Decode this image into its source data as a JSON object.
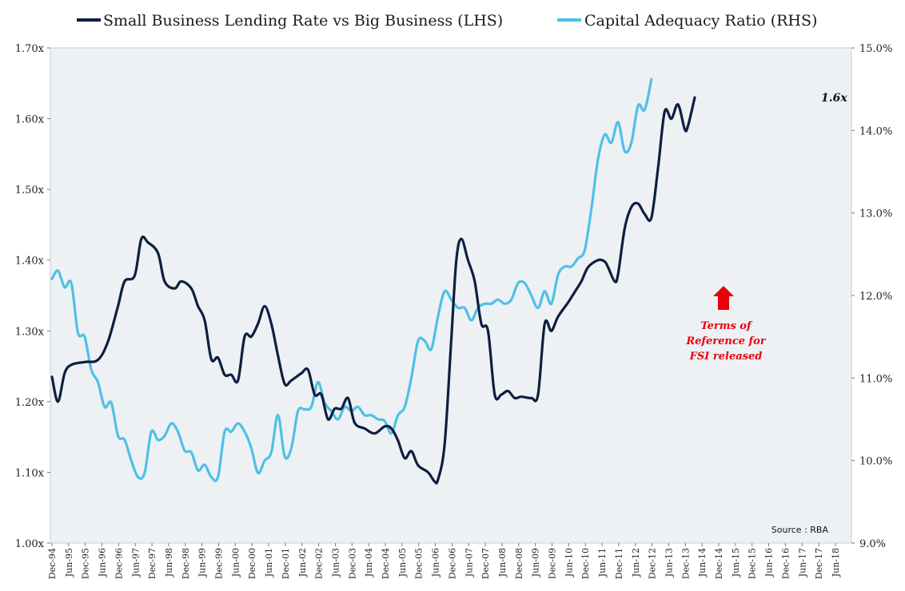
{
  "chart_data": {
    "type": "line",
    "title": "",
    "legend": {
      "placement": "top",
      "entries": [
        "Small Business Lending Rate vs Big Business (LHS)",
        "Capital Adequacy Ratio (RHS)"
      ]
    },
    "y_left": {
      "min": 1.0,
      "max": 1.7,
      "ticks": [
        "1.00x",
        "1.10x",
        "1.20x",
        "1.30x",
        "1.40x",
        "1.50x",
        "1.60x",
        "1.70x"
      ]
    },
    "y_right": {
      "min": 9.0,
      "max": 15.0,
      "ticks": [
        "9.0%",
        "10.0%",
        "11.0%",
        "12.0%",
        "13.0%",
        "14.0%",
        "15.0%"
      ]
    },
    "x_ticks": [
      "Dec-94",
      "Jun-95",
      "Dec-95",
      "Jun-96",
      "Dec-96",
      "Jun-97",
      "Dec-97",
      "Jun-98",
      "Dec-98",
      "Jun-99",
      "Dec-99",
      "Jun-00",
      "Dec-00",
      "Jun-01",
      "Dec-01",
      "Jun-02",
      "Dec-02",
      "Jun-03",
      "Dec-03",
      "Jun-04",
      "Dec-04",
      "Jun-05",
      "Dec-05",
      "Jun-06",
      "Dec-06",
      "Jun-07",
      "Dec-07",
      "Jun-08",
      "Dec-08",
      "Jun-09",
      "Dec-09",
      "Jun-10",
      "Dec-10",
      "Jun-11",
      "Dec-11",
      "Jun-12",
      "Dec-12",
      "Jun-13",
      "Dec-13",
      "Jun-14",
      "Dec-14",
      "Jun-15",
      "Dec-15",
      "Jun-16",
      "Dec-16",
      "Jun-17",
      "Dec-17",
      "Jun-18"
    ],
    "grid": false,
    "series": [
      {
        "name": "Small Business Lending Rate vs Big Business (LHS)",
        "axis": "left",
        "color": "#0d1f40",
        "points": [
          [
            1994.92,
            1.235
          ],
          [
            1995.1,
            1.2
          ],
          [
            1995.3,
            1.24
          ],
          [
            1995.5,
            1.252
          ],
          [
            1995.9,
            1.256
          ],
          [
            1996.3,
            1.259
          ],
          [
            1996.6,
            1.285
          ],
          [
            1996.9,
            1.335
          ],
          [
            1997.1,
            1.37
          ],
          [
            1997.4,
            1.378
          ],
          [
            1997.6,
            1.43
          ],
          [
            1997.8,
            1.425
          ],
          [
            1998.1,
            1.41
          ],
          [
            1998.3,
            1.37
          ],
          [
            1998.6,
            1.36
          ],
          [
            1998.8,
            1.37
          ],
          [
            1999.1,
            1.36
          ],
          [
            1999.3,
            1.335
          ],
          [
            1999.5,
            1.315
          ],
          [
            1999.7,
            1.26
          ],
          [
            1999.9,
            1.262
          ],
          [
            2000.1,
            1.238
          ],
          [
            2000.3,
            1.238
          ],
          [
            2000.5,
            1.23
          ],
          [
            2000.7,
            1.292
          ],
          [
            2000.9,
            1.292
          ],
          [
            2001.1,
            1.31
          ],
          [
            2001.3,
            1.335
          ],
          [
            2001.5,
            1.31
          ],
          [
            2001.7,
            1.265
          ],
          [
            2001.9,
            1.225
          ],
          [
            2002.1,
            1.23
          ],
          [
            2002.4,
            1.24
          ],
          [
            2002.6,
            1.245
          ],
          [
            2002.8,
            1.21
          ],
          [
            2003.0,
            1.21
          ],
          [
            2003.2,
            1.175
          ],
          [
            2003.4,
            1.19
          ],
          [
            2003.6,
            1.19
          ],
          [
            2003.8,
            1.205
          ],
          [
            2004.0,
            1.17
          ],
          [
            2004.3,
            1.162
          ],
          [
            2004.6,
            1.155
          ],
          [
            2004.9,
            1.165
          ],
          [
            2005.1,
            1.162
          ],
          [
            2005.3,
            1.145
          ],
          [
            2005.5,
            1.12
          ],
          [
            2005.7,
            1.13
          ],
          [
            2005.9,
            1.11
          ],
          [
            2006.2,
            1.1
          ],
          [
            2006.4,
            1.087
          ],
          [
            2006.5,
            1.09
          ],
          [
            2006.7,
            1.14
          ],
          [
            2006.9,
            1.29
          ],
          [
            2007.05,
            1.4
          ],
          [
            2007.2,
            1.43
          ],
          [
            2007.4,
            1.4
          ],
          [
            2007.6,
            1.37
          ],
          [
            2007.8,
            1.31
          ],
          [
            2008.0,
            1.3
          ],
          [
            2008.2,
            1.21
          ],
          [
            2008.4,
            1.21
          ],
          [
            2008.6,
            1.215
          ],
          [
            2008.8,
            1.205
          ],
          [
            2009.0,
            1.207
          ],
          [
            2009.3,
            1.205
          ],
          [
            2009.5,
            1.21
          ],
          [
            2009.7,
            1.31
          ],
          [
            2009.9,
            1.3
          ],
          [
            2010.1,
            1.32
          ],
          [
            2010.4,
            1.34
          ],
          [
            2010.6,
            1.355
          ],
          [
            2010.8,
            1.37
          ],
          [
            2011.0,
            1.39
          ],
          [
            2011.3,
            1.4
          ],
          [
            2011.5,
            1.398
          ],
          [
            2011.6,
            1.39
          ],
          [
            2011.8,
            1.37
          ],
          [
            2011.9,
            1.38
          ],
          [
            2012.1,
            1.445
          ],
          [
            2012.3,
            1.475
          ],
          [
            2012.5,
            1.48
          ],
          [
            2012.7,
            1.465
          ],
          [
            2012.9,
            1.46
          ],
          [
            2013.1,
            1.53
          ],
          [
            2013.3,
            1.61
          ],
          [
            2013.5,
            1.6
          ],
          [
            2013.7,
            1.62
          ],
          [
            2013.9,
            1.585
          ],
          [
            2014.0,
            1.59
          ],
          [
            2014.2,
            1.63
          ]
        ]
      },
      {
        "name": "Capital Adequacy Ratio (RHS)",
        "axis": "right",
        "color": "#4fc0e6",
        "points": [
          [
            1994.92,
            12.2
          ],
          [
            1995.1,
            12.3
          ],
          [
            1995.3,
            12.1
          ],
          [
            1995.5,
            12.15
          ],
          [
            1995.7,
            11.55
          ],
          [
            1995.9,
            11.5
          ],
          [
            1996.1,
            11.1
          ],
          [
            1996.3,
            10.95
          ],
          [
            1996.5,
            10.65
          ],
          [
            1996.7,
            10.7
          ],
          [
            1996.9,
            10.3
          ],
          [
            1997.1,
            10.25
          ],
          [
            1997.3,
            10.0
          ],
          [
            1997.5,
            9.8
          ],
          [
            1997.7,
            9.85
          ],
          [
            1997.9,
            10.35
          ],
          [
            1998.1,
            10.25
          ],
          [
            1998.3,
            10.3
          ],
          [
            1998.5,
            10.45
          ],
          [
            1998.7,
            10.35
          ],
          [
            1998.9,
            10.12
          ],
          [
            1999.1,
            10.1
          ],
          [
            1999.3,
            9.88
          ],
          [
            1999.5,
            9.95
          ],
          [
            1999.7,
            9.8
          ],
          [
            1999.9,
            9.8
          ],
          [
            2000.1,
            10.35
          ],
          [
            2000.3,
            10.35
          ],
          [
            2000.5,
            10.45
          ],
          [
            2000.7,
            10.35
          ],
          [
            2000.9,
            10.15
          ],
          [
            2001.1,
            9.85
          ],
          [
            2001.3,
            10.0
          ],
          [
            2001.5,
            10.1
          ],
          [
            2001.7,
            10.55
          ],
          [
            2001.9,
            10.05
          ],
          [
            2002.1,
            10.15
          ],
          [
            2002.3,
            10.6
          ],
          [
            2002.5,
            10.62
          ],
          [
            2002.7,
            10.65
          ],
          [
            2002.9,
            10.95
          ],
          [
            2003.1,
            10.7
          ],
          [
            2003.3,
            10.6
          ],
          [
            2003.5,
            10.5
          ],
          [
            2003.7,
            10.65
          ],
          [
            2003.9,
            10.6
          ],
          [
            2004.1,
            10.65
          ],
          [
            2004.3,
            10.55
          ],
          [
            2004.5,
            10.55
          ],
          [
            2004.7,
            10.5
          ],
          [
            2004.9,
            10.48
          ],
          [
            2005.1,
            10.33
          ],
          [
            2005.3,
            10.55
          ],
          [
            2005.5,
            10.65
          ],
          [
            2005.7,
            11.0
          ],
          [
            2005.9,
            11.45
          ],
          [
            2006.1,
            11.45
          ],
          [
            2006.3,
            11.35
          ],
          [
            2006.5,
            11.75
          ],
          [
            2006.7,
            12.05
          ],
          [
            2006.9,
            11.95
          ],
          [
            2007.1,
            11.85
          ],
          [
            2007.3,
            11.85
          ],
          [
            2007.5,
            11.7
          ],
          [
            2007.7,
            11.85
          ],
          [
            2007.9,
            11.9
          ],
          [
            2008.1,
            11.9
          ],
          [
            2008.3,
            11.95
          ],
          [
            2008.5,
            11.9
          ],
          [
            2008.7,
            11.95
          ],
          [
            2008.9,
            12.15
          ],
          [
            2009.1,
            12.15
          ],
          [
            2009.3,
            12.0
          ],
          [
            2009.5,
            11.85
          ],
          [
            2009.7,
            12.05
          ],
          [
            2009.9,
            11.9
          ],
          [
            2010.1,
            12.25
          ],
          [
            2010.3,
            12.35
          ],
          [
            2010.5,
            12.35
          ],
          [
            2010.7,
            12.45
          ],
          [
            2010.9,
            12.55
          ],
          [
            2011.1,
            13.05
          ],
          [
            2011.3,
            13.65
          ],
          [
            2011.5,
            13.95
          ],
          [
            2011.7,
            13.85
          ],
          [
            2011.9,
            14.1
          ],
          [
            2012.1,
            13.75
          ],
          [
            2012.3,
            13.85
          ],
          [
            2012.5,
            14.3
          ],
          [
            2012.7,
            14.25
          ],
          [
            2012.9,
            14.62
          ]
        ]
      }
    ],
    "annotations": [
      {
        "type": "text-block",
        "lines": [
          "Terms of",
          "Reference for",
          "FSI released"
        ],
        "color": "#e8000b"
      },
      {
        "type": "end-label",
        "text": "1.6x"
      },
      {
        "type": "source",
        "text": "Source : RBA"
      }
    ]
  }
}
